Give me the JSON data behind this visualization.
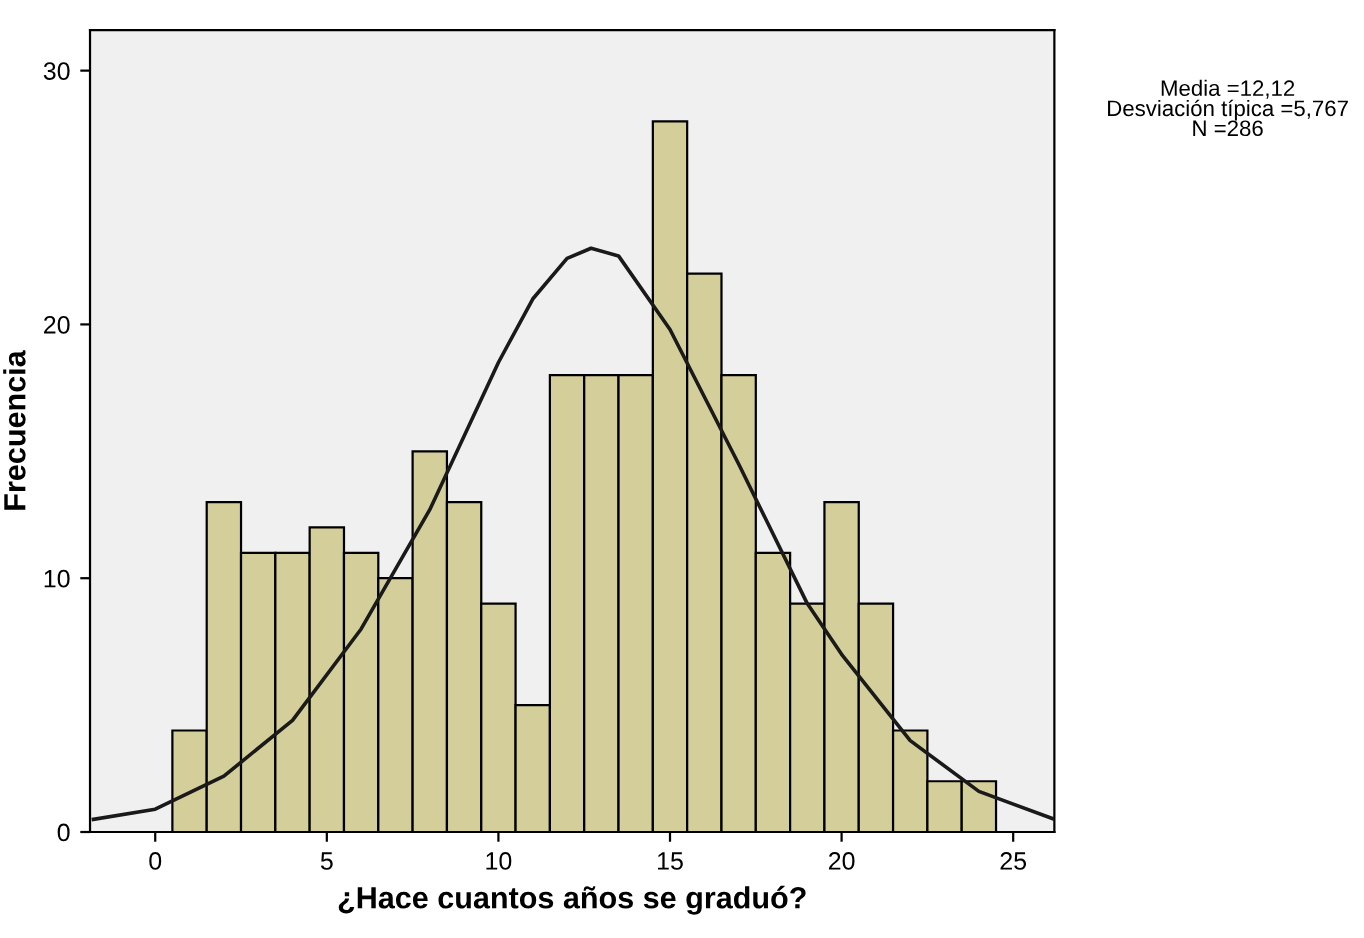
{
  "chart_data": {
    "type": "histogram",
    "xlabel": "¿Hace cuantos años se graduó?",
    "ylabel": "Frecuencia",
    "annotations": [
      "Media =12,12",
      "Desviación típica =5,767",
      "N =286"
    ],
    "series": [
      {
        "color": "#d4cf9a",
        "bins": [
          0.5,
          1.5,
          2.5,
          3.5,
          4.5,
          5.5,
          6.5,
          7.5,
          8.5,
          9.5,
          10.5,
          11.5,
          12.5,
          13.5,
          14.5,
          15.5,
          16.5,
          17.5,
          18.5,
          19.5,
          20.5,
          21.5,
          22.5,
          23.5,
          24.5
        ],
        "values": [
          4,
          13,
          11,
          11,
          12,
          11,
          10,
          15,
          13,
          9,
          5,
          18,
          18,
          18,
          28,
          22,
          18,
          11,
          9,
          13,
          9,
          4,
          2,
          2
        ]
      },
      {
        "type": "line",
        "color": "#1a1a1a",
        "x": [
          -1.8,
          0,
          2,
          4,
          6,
          8,
          10,
          11,
          12,
          12.7,
          13.5,
          15,
          17,
          19,
          20,
          22,
          24,
          26.2
        ],
        "values": [
          0.5,
          0.9,
          2.2,
          4.4,
          8,
          12.7,
          18.5,
          21,
          22.6,
          23,
          22.7,
          19.8,
          14.5,
          9,
          7,
          3.6,
          1.6,
          0.5
        ]
      }
    ],
    "xlim": [
      -1.9,
      26.2
    ],
    "ylim": [
      0,
      31.6
    ],
    "xticks": [
      0,
      5,
      10,
      15,
      20,
      25
    ],
    "yticks": [
      0,
      10,
      20,
      30
    ],
    "grid": false,
    "legend": false
  }
}
